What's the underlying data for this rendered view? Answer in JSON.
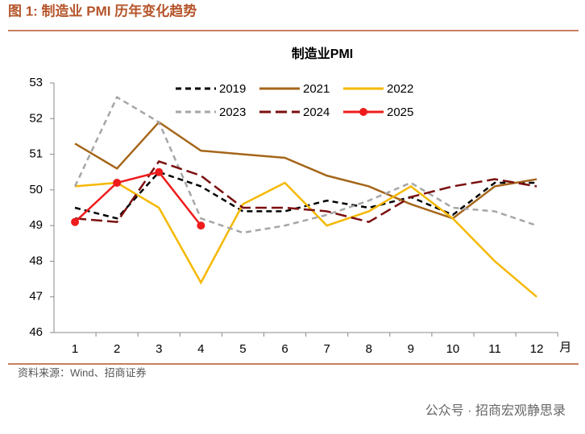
{
  "header": "图 1:  制造业 PMI 历年变化趋势",
  "source": "资料来源：Wind、招商证券",
  "watermark": "公众号 · 招商宏观静思录",
  "chart_data": {
    "type": "line",
    "title": "制造业PMI",
    "x_unit": "月",
    "categories": [
      "1",
      "2",
      "3",
      "4",
      "5",
      "6",
      "7",
      "8",
      "9",
      "10",
      "11",
      "12"
    ],
    "ylim": [
      46,
      53
    ],
    "yticks": [
      46,
      47,
      48,
      49,
      50,
      51,
      52,
      53
    ],
    "series": [
      {
        "name": "2019",
        "color": "#000000",
        "dash": "dashed",
        "values": [
          49.5,
          49.2,
          50.5,
          50.1,
          49.4,
          49.4,
          49.7,
          49.5,
          49.8,
          49.3,
          50.2,
          50.2
        ]
      },
      {
        "name": "2021",
        "color": "#a5661a",
        "dash": "solid",
        "values": [
          51.3,
          50.6,
          51.9,
          51.1,
          51.0,
          50.9,
          50.4,
          50.1,
          49.6,
          49.2,
          50.1,
          50.3
        ]
      },
      {
        "name": "2022",
        "color": "#f5b800",
        "dash": "solid",
        "values": [
          50.1,
          50.2,
          49.5,
          47.4,
          49.6,
          50.2,
          49.0,
          49.4,
          50.1,
          49.2,
          48.0,
          47.0
        ]
      },
      {
        "name": "2023",
        "color": "#a6a6a6",
        "dash": "dashed",
        "values": [
          50.1,
          52.6,
          51.9,
          49.2,
          48.8,
          49.0,
          49.3,
          49.7,
          50.2,
          49.5,
          49.4,
          49.0
        ]
      },
      {
        "name": "2024",
        "color": "#7b0f0f",
        "dash": "longdash",
        "values": [
          49.2,
          49.1,
          50.8,
          50.4,
          49.5,
          49.5,
          49.4,
          49.1,
          49.8,
          50.1,
          50.3,
          50.1
        ]
      },
      {
        "name": "2025",
        "color": "#ee1c1c",
        "dash": "solid",
        "marker": true,
        "values": [
          49.1,
          50.2,
          50.5,
          49.0,
          null,
          null,
          null,
          null,
          null,
          null,
          null,
          null
        ]
      }
    ]
  }
}
